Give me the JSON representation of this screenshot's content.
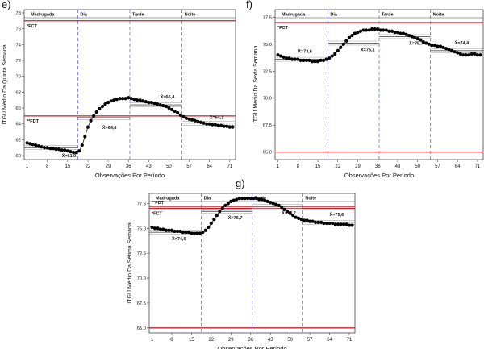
{
  "chart_data": [
    {
      "panel_label": "e)",
      "type": "line",
      "ylabel": "ITGU Médio Da Quinta Semana",
      "xlabel": "Observações Por Período",
      "x_ticks": [
        1,
        8,
        15,
        22,
        29,
        36,
        43,
        50,
        57,
        64,
        71
      ],
      "y_ticks": [
        60,
        62,
        64,
        66,
        68,
        70,
        72,
        74,
        76,
        78
      ],
      "xlim": [
        0,
        73
      ],
      "ylim": [
        59.5,
        78.4
      ],
      "period_labels": [
        "Madrugada",
        "Dia",
        "Tarde",
        "Noite"
      ],
      "period_boundaries": [
        18.5,
        36.5,
        54.5
      ],
      "ref_lines": [
        {
          "label": "*FCT",
          "value": 77.0
        },
        {
          "label": "**FDT",
          "value": 65.0
        }
      ],
      "means": [
        {
          "label": "X̄=61,0",
          "value": 61.0
        },
        {
          "label": "X̄=64,8",
          "value": 64.8
        },
        {
          "label": "X̄=66,4",
          "value": 66.4
        },
        {
          "label": "X̄=64,1",
          "value": 64.1
        }
      ],
      "series": [
        {
          "values": [
            61.6,
            61.5,
            61.4,
            61.3,
            61.2,
            61.1,
            61.0,
            61.0,
            60.9,
            60.9,
            60.8,
            60.8,
            60.7,
            60.7,
            60.6,
            60.5,
            60.4,
            60.4,
            60.6,
            61.3,
            62.4,
            63.6,
            64.4,
            65.0,
            65.5,
            65.9,
            66.2,
            66.5,
            66.7,
            66.9,
            67.0,
            67.1,
            67.2,
            67.2,
            67.2,
            67.3,
            67.2,
            67.1,
            67.0,
            67.0,
            66.9,
            66.8,
            66.7,
            66.7,
            66.6,
            66.5,
            66.4,
            66.3,
            66.2,
            66.0,
            65.8,
            65.6,
            65.4,
            65.1,
            64.9,
            64.7,
            64.6,
            64.5,
            64.4,
            64.3,
            64.2,
            64.1,
            64.0,
            64.0,
            63.9,
            63.9,
            63.8,
            63.8,
            63.7,
            63.7,
            63.6,
            63.6
          ]
        }
      ]
    },
    {
      "panel_label": "f)",
      "type": "line",
      "ylabel": "ITGU Médio Da Sexta Semana",
      "xlabel": "Observações Por Período",
      "x_ticks": [
        1,
        8,
        15,
        22,
        29,
        36,
        43,
        50,
        57,
        64,
        71
      ],
      "y_ticks": [
        65.0,
        67.5,
        70.0,
        72.5,
        75.0,
        77.5
      ],
      "xlim": [
        0,
        73
      ],
      "ylim": [
        64.3,
        78.2
      ],
      "period_labels": [
        "Madrugada",
        "Dia",
        "Tarde",
        "Noite"
      ],
      "period_boundaries": [
        18.5,
        36.5,
        54.5
      ],
      "ref_lines": [
        {
          "label": "*FCT",
          "value": 77.0
        },
        {
          "label": "",
          "value": 65.0
        }
      ],
      "means": [
        {
          "label": "X̄=73,6",
          "value": 73.6
        },
        {
          "label": "X̄=75,1",
          "value": 75.1
        },
        {
          "label": "X̄=75,7",
          "value": 75.7
        },
        {
          "label": "X̄=74,4",
          "value": 74.4
        }
      ],
      "series": [
        {
          "values": [
            74.0,
            73.9,
            73.8,
            73.7,
            73.7,
            73.6,
            73.6,
            73.6,
            73.5,
            73.5,
            73.5,
            73.5,
            73.4,
            73.4,
            73.4,
            73.5,
            73.5,
            73.6,
            73.7,
            73.9,
            74.1,
            74.4,
            74.7,
            75.0,
            75.3,
            75.6,
            75.8,
            76.0,
            76.1,
            76.2,
            76.3,
            76.3,
            76.3,
            76.4,
            76.4,
            76.4,
            76.3,
            76.3,
            76.3,
            76.2,
            76.2,
            76.1,
            76.1,
            76.0,
            76.0,
            75.9,
            75.8,
            75.7,
            75.6,
            75.5,
            75.4,
            75.2,
            75.1,
            75.0,
            74.9,
            74.9,
            74.8,
            74.8,
            74.7,
            74.6,
            74.5,
            74.4,
            74.3,
            74.2,
            74.1,
            74.0,
            74.0,
            74.0,
            74.1,
            74.1,
            74.0,
            74.0
          ]
        }
      ]
    },
    {
      "panel_label": "g)",
      "type": "line",
      "ylabel": "ITGU Médio Da Sétima Semana",
      "xlabel": "Observações Por Período",
      "x_ticks": [
        1,
        8,
        15,
        22,
        29,
        36,
        43,
        50,
        57,
        64,
        71
      ],
      "y_ticks": [
        65.0,
        67.5,
        70.0,
        72.5,
        75.0,
        77.5
      ],
      "xlim": [
        0,
        73
      ],
      "ylim": [
        64.5,
        78.5
      ],
      "period_labels": [
        "Madrugada",
        "Dia",
        "Tarde",
        "Noite"
      ],
      "period_boundaries": [
        18.5,
        36.5,
        54.5
      ],
      "ref_lines": [
        {
          "label": "**FDT",
          "value": 77.2
        },
        {
          "label": "*FCT",
          "value": 77.0
        },
        {
          "label": "",
          "value": 65.0
        }
      ],
      "means": [
        {
          "label": "X̄=74,6",
          "value": 74.6
        },
        {
          "label": "X̄=76,7",
          "value": 76.7
        },
        {
          "label": "X̄=77,2",
          "value": 77.2
        },
        {
          "label": "X̄=75,6",
          "value": 75.6
        }
      ],
      "series": [
        {
          "values": [
            75.1,
            75.0,
            75.0,
            74.9,
            74.9,
            74.8,
            74.8,
            74.8,
            74.7,
            74.7,
            74.7,
            74.6,
            74.6,
            74.6,
            74.5,
            74.5,
            74.5,
            74.5,
            74.6,
            74.8,
            75.1,
            75.5,
            75.9,
            76.3,
            76.7,
            77.0,
            77.3,
            77.5,
            77.7,
            77.8,
            77.9,
            78.0,
            78.0,
            78.0,
            78.0,
            78.0,
            78.0,
            78.0,
            77.9,
            77.9,
            77.8,
            77.7,
            77.6,
            77.5,
            77.4,
            77.3,
            77.1,
            76.9,
            76.7,
            76.5,
            76.3,
            76.1,
            76.0,
            75.9,
            75.8,
            75.8,
            75.7,
            75.7,
            75.6,
            75.6,
            75.6,
            75.5,
            75.5,
            75.5,
            75.5,
            75.4,
            75.4,
            75.4,
            75.4,
            75.4,
            75.3,
            75.3
          ]
        }
      ]
    }
  ],
  "colors": {
    "ref_line": "#c0232a",
    "period_divider": "#6a6ad8",
    "mean_line": "#7a7a7a",
    "marker": "#000000"
  }
}
